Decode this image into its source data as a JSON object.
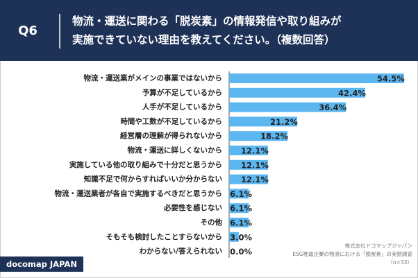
{
  "question": "Q6",
  "brand": "docomap JAPAN",
  "source": [
    "株式会社ドコマップジャパン",
    "ESG推進企業の物流における「脱炭素」の実態調査",
    "（n=33）"
  ],
  "chart_data": {
    "type": "bar",
    "orientation": "horizontal",
    "title_lines": [
      "物流・運送に関わる「脱炭素」の情報発信や取り組みが",
      "実施できていない理由を教えてください。（複数回答）"
    ],
    "categories": [
      "物流・運送業がメインの事業ではないから",
      "予算が不足しているから",
      "人手が不足しているから",
      "時間や工数が不足しているから",
      "経営層の理解が得られないから",
      "物流・運送に詳しくないから",
      "実施している他の取り組みで十分だと思うから",
      "知識不足で何からすればいいか分からない",
      "物流・運送業者が各自で実施するべきだと思うから",
      "必要性を感じない",
      "その他",
      "そもそも検討したことすらないから",
      "わからない/答えられない"
    ],
    "values": [
      54.5,
      42.4,
      36.4,
      21.2,
      18.2,
      12.1,
      12.1,
      12.1,
      6.1,
      6.1,
      6.1,
      3.0,
      0.0
    ],
    "value_labels": [
      "54.5%",
      "42.4%",
      "36.4%",
      "21.2%",
      "18.2%",
      "12.1%",
      "12.1%",
      "12.1%",
      "6.1%",
      "6.1%",
      "6.1%",
      "3.0%",
      "0.0%"
    ],
    "color": "#5cb6f0"
  }
}
